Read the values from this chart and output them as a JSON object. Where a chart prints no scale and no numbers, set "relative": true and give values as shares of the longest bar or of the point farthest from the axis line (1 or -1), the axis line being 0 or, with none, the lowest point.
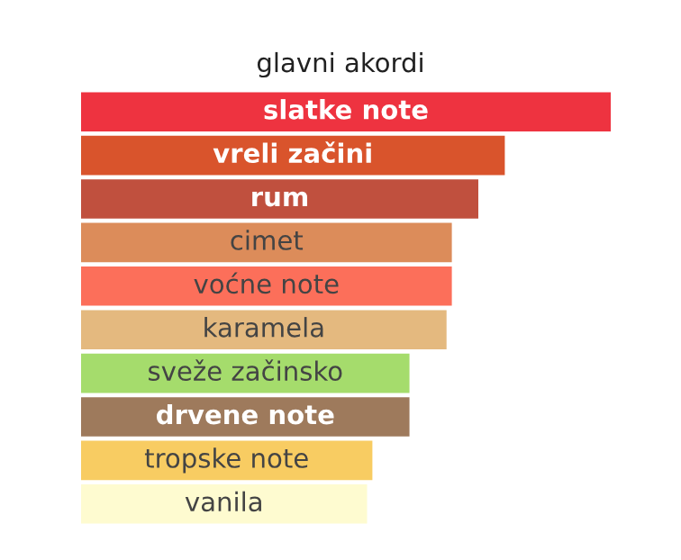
{
  "chart_data": {
    "type": "bar",
    "orientation": "horizontal",
    "relative": true,
    "title": "glavni akordi",
    "categories": [
      "slatke note",
      "vreli začini",
      "rum",
      "cimet",
      "voćne note",
      "karamela",
      "sveže začinsko",
      "drvene note",
      "tropske note",
      "vanila"
    ],
    "values": [
      1,
      0.8,
      0.75,
      0.7,
      0.7,
      0.69,
      0.62,
      0.62,
      0.55,
      0.54
    ],
    "colors": [
      "#ee3340",
      "#d9542c",
      "#c0503e",
      "#dc8c5a",
      "#fc6f5a",
      "#e4b97f",
      "#a5dc6c",
      "#9e7a5c",
      "#f8cc62",
      "#fefbd0"
    ],
    "legend": false
  }
}
